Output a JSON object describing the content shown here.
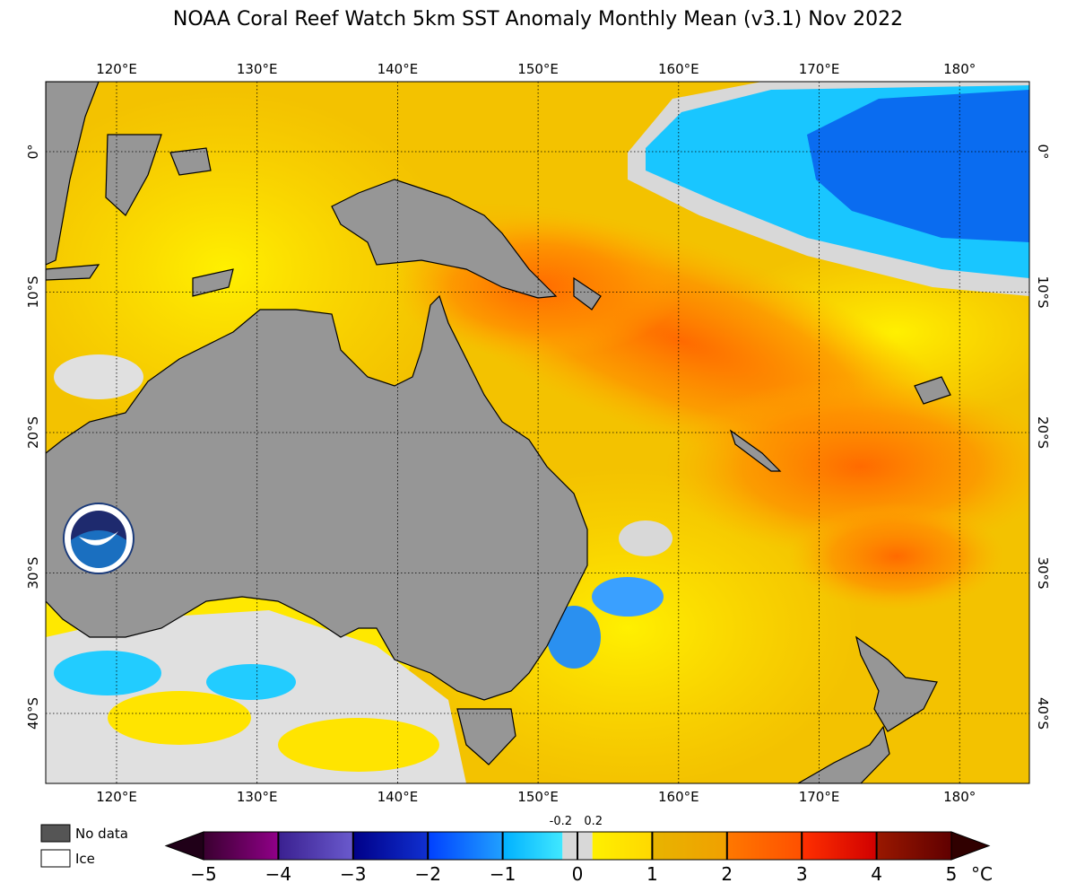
{
  "title": "NOAA Coral Reef Watch 5km SST Anomaly Monthly Mean  (v3.1)   Nov 2022",
  "map": {
    "lon_labels": [
      "120°E",
      "130°E",
      "140°E",
      "150°E",
      "160°E",
      "170°E",
      "180°"
    ],
    "lat_labels": [
      "0°",
      "10°S",
      "20°S",
      "30°S",
      "40°S"
    ]
  },
  "legend": {
    "no_data": "No data",
    "ice": "Ice"
  },
  "colorbar": {
    "ticks": [
      "−5",
      "−4",
      "−3",
      "−2",
      "−1",
      "0",
      "1",
      "2",
      "3",
      "4",
      "5"
    ],
    "near_zero": [
      "-0.2",
      "0.2"
    ],
    "unit": "°C"
  }
}
